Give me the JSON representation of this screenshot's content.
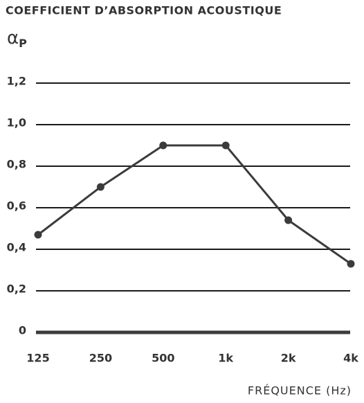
{
  "chart_data": {
    "type": "line",
    "title": "COEFFICIENT D’ABSORPTION ACOUSTIQUE",
    "ylabel": {
      "symbol": "α",
      "subscript": "P"
    },
    "xlabel": "FRÉQUENCE (Hz)",
    "categories": [
      "125",
      "250",
      "500",
      "1k",
      "2k",
      "4k"
    ],
    "values": [
      0.47,
      0.7,
      0.9,
      0.9,
      0.54,
      0.33
    ],
    "color": "#3b3b3b",
    "ylim": [
      0,
      1.2
    ],
    "yticks": [
      0,
      {
        "value": 0.2,
        "label": "0,2"
      },
      {
        "value": 0.4,
        "label": "0,4"
      },
      {
        "value": 0.6,
        "label": "0,6"
      },
      {
        "value": 0.8,
        "label": "0,8"
      },
      {
        "value": 1.0,
        "label": "1,0"
      },
      {
        "value": 1.2,
        "label": "1,2"
      }
    ],
    "grid": true
  }
}
